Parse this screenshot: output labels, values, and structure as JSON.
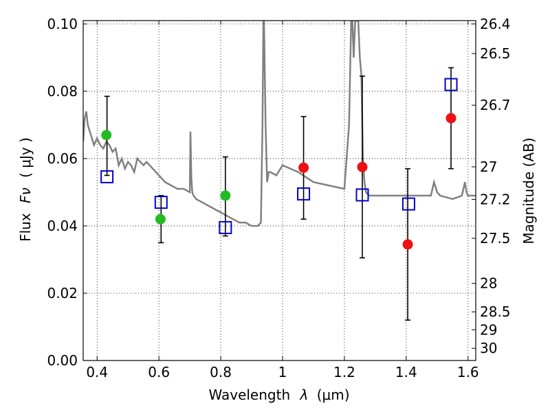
{
  "chart_data": {
    "type": "scatter",
    "xlabel": "Wavelength",
    "xlabel_symbol": "λ",
    "xlabel_unit": "(μm)",
    "ylabel": "Flux",
    "ylabel_symbol": "Fν",
    "ylabel_unit": "( μJy )",
    "y2label": "Magnitude (AB)",
    "xlim": [
      0.355,
      1.625
    ],
    "ylim": [
      0.0,
      0.101
    ],
    "xticks": [
      0.4,
      0.6,
      0.8,
      1.0,
      1.2,
      1.4,
      1.6
    ],
    "xtick_labels": [
      "0.4",
      "0.6",
      "0.8",
      "1",
      "1.2",
      "1.4",
      "1.6"
    ],
    "yticks": [
      0.0,
      0.02,
      0.04,
      0.06,
      0.08,
      0.1
    ],
    "ytick_labels": [
      "0.00",
      "0.02",
      "0.04",
      "0.06",
      "0.08",
      "0.10"
    ],
    "y2ticks": [
      26.4,
      26.5,
      26.7,
      27.0,
      27.2,
      27.5,
      28.0,
      28.5,
      29.0,
      30.0
    ],
    "y2tick_labels": [
      "26.4",
      "26.5",
      "26.7",
      "27",
      "27.2",
      "27.5",
      "28",
      "28.5",
      "29",
      "30"
    ],
    "grid": true,
    "colors": {
      "model": "#808080",
      "green": "#22bb22",
      "red": "#ee1111",
      "box": "#0000cc",
      "errorbar": "#000000"
    },
    "series": [
      {
        "name": "Model SED",
        "kind": "line",
        "x": [
          0.355,
          0.36,
          0.365,
          0.37,
          0.38,
          0.39,
          0.4,
          0.41,
          0.42,
          0.43,
          0.44,
          0.45,
          0.46,
          0.47,
          0.48,
          0.49,
          0.5,
          0.51,
          0.52,
          0.53,
          0.54,
          0.55,
          0.56,
          0.57,
          0.58,
          0.59,
          0.6,
          0.62,
          0.64,
          0.66,
          0.68,
          0.7,
          0.702,
          0.705,
          0.708,
          0.712,
          0.72,
          0.74,
          0.76,
          0.78,
          0.8,
          0.82,
          0.84,
          0.86,
          0.88,
          0.9,
          0.91,
          0.92,
          0.93,
          0.935,
          0.938,
          0.94,
          0.945,
          0.95,
          0.955,
          0.96,
          0.98,
          1.0,
          1.05,
          1.1,
          1.15,
          1.2,
          1.215,
          1.222,
          1.226,
          1.23,
          1.235,
          1.24,
          1.245,
          1.25,
          1.255,
          1.26,
          1.265,
          1.27,
          1.28,
          1.3,
          1.35,
          1.4,
          1.45,
          1.48,
          1.49,
          1.5,
          1.51,
          1.55,
          1.58,
          1.59,
          1.595,
          1.6,
          1.625
        ],
        "y": [
          0.065,
          0.072,
          0.074,
          0.07,
          0.067,
          0.064,
          0.066,
          0.064,
          0.063,
          0.065,
          0.064,
          0.062,
          0.063,
          0.058,
          0.06,
          0.057,
          0.059,
          0.058,
          0.056,
          0.06,
          0.059,
          0.058,
          0.059,
          0.058,
          0.057,
          0.056,
          0.055,
          0.053,
          0.052,
          0.051,
          0.051,
          0.05,
          0.068,
          0.054,
          0.05,
          0.049,
          0.048,
          0.047,
          0.046,
          0.045,
          0.044,
          0.043,
          0.042,
          0.041,
          0.041,
          0.04,
          0.04,
          0.04,
          0.041,
          0.07,
          0.101,
          0.101,
          0.07,
          0.053,
          0.056,
          0.056,
          0.055,
          0.058,
          0.056,
          0.053,
          0.052,
          0.051,
          0.07,
          0.101,
          0.101,
          0.09,
          0.101,
          0.101,
          0.101,
          0.09,
          0.085,
          0.06,
          0.053,
          0.05,
          0.049,
          0.049,
          0.049,
          0.049,
          0.049,
          0.049,
          0.053,
          0.05,
          0.049,
          0.048,
          0.049,
          0.053,
          0.05,
          0.049,
          0.049
        ]
      },
      {
        "name": "Green points",
        "kind": "circle",
        "x": [
          0.43,
          0.605,
          0.815
        ],
        "y": [
          0.067,
          0.042,
          0.049
        ]
      },
      {
        "name": "Red points",
        "kind": "circle",
        "x": [
          1.068,
          1.258,
          1.405,
          1.545
        ],
        "y": [
          0.0573,
          0.0575,
          0.0345,
          0.072
        ]
      },
      {
        "name": "Model band flux",
        "kind": "square",
        "x": [
          0.432,
          0.607,
          0.815,
          1.068,
          1.258,
          1.408,
          1.545
        ],
        "y": [
          0.0546,
          0.047,
          0.0395,
          0.0495,
          0.0492,
          0.0465,
          0.082
        ]
      }
    ],
    "errorbars": [
      {
        "x": 0.432,
        "low": 0.055,
        "high": 0.0785
      },
      {
        "x": 0.607,
        "low": 0.035,
        "high": 0.049
      },
      {
        "x": 0.815,
        "low": 0.037,
        "high": 0.0605
      },
      {
        "x": 1.068,
        "low": 0.042,
        "high": 0.0725
      },
      {
        "x": 1.258,
        "low": 0.0305,
        "high": 0.0845
      },
      {
        "x": 1.405,
        "low": 0.012,
        "high": 0.057
      },
      {
        "x": 1.545,
        "low": 0.057,
        "high": 0.087
      }
    ]
  }
}
